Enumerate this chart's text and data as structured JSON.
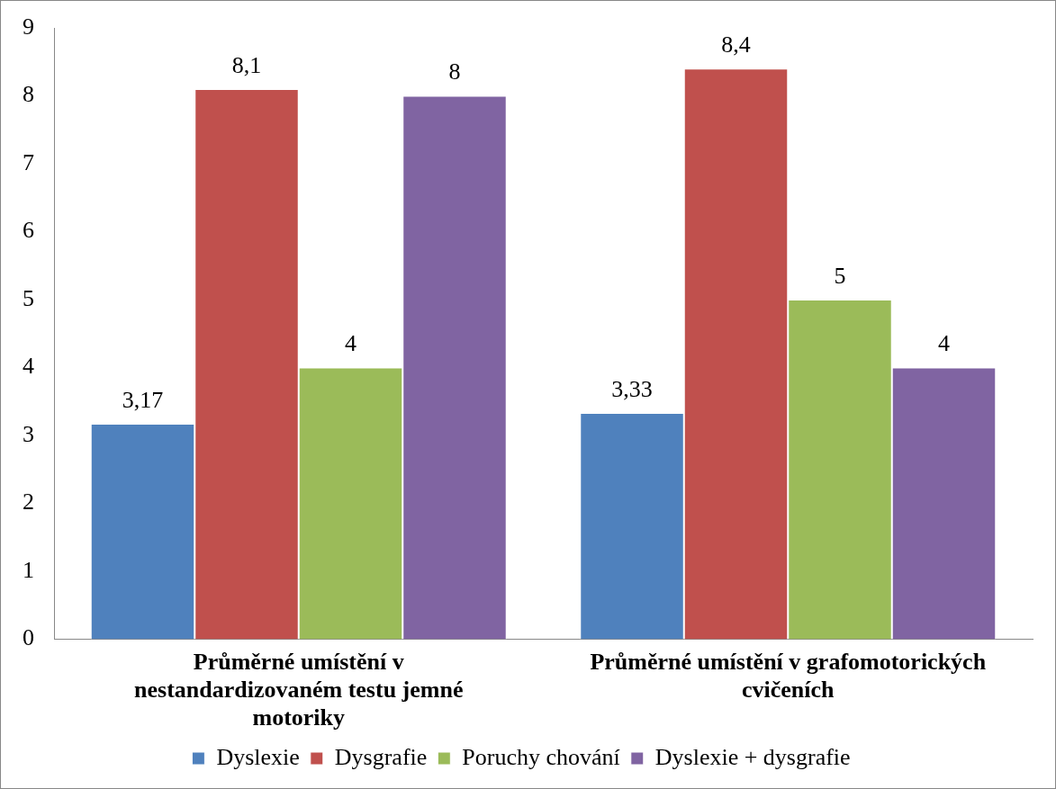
{
  "chart_data": {
    "type": "bar",
    "categories": [
      "Průměrné umístění v nestandardizovaném testu jemné motoriky",
      "Průměrné umístění v grafomotorických cvičeních"
    ],
    "series": [
      {
        "name": "Dyslexie",
        "color": "#4f81bd",
        "values": [
          3.17,
          3.33
        ],
        "value_labels": [
          "3,17",
          "3,33"
        ]
      },
      {
        "name": "Dysgrafie",
        "color": "#c0504d",
        "values": [
          8.1,
          8.4
        ],
        "value_labels": [
          "8,1",
          "8,4"
        ]
      },
      {
        "name": "Poruchy chování",
        "color": "#9bbb59",
        "values": [
          4,
          5
        ],
        "value_labels": [
          "4",
          "5"
        ]
      },
      {
        "name": "Dyslexie + dysgrafie",
        "color": "#8064a2",
        "values": [
          8,
          4
        ],
        "value_labels": [
          "8",
          "4"
        ]
      }
    ],
    "ylim": [
      0,
      9
    ],
    "yticks": [
      0,
      1,
      2,
      3,
      4,
      5,
      6,
      7,
      8,
      9
    ],
    "grid": false,
    "legend": "bottom"
  }
}
